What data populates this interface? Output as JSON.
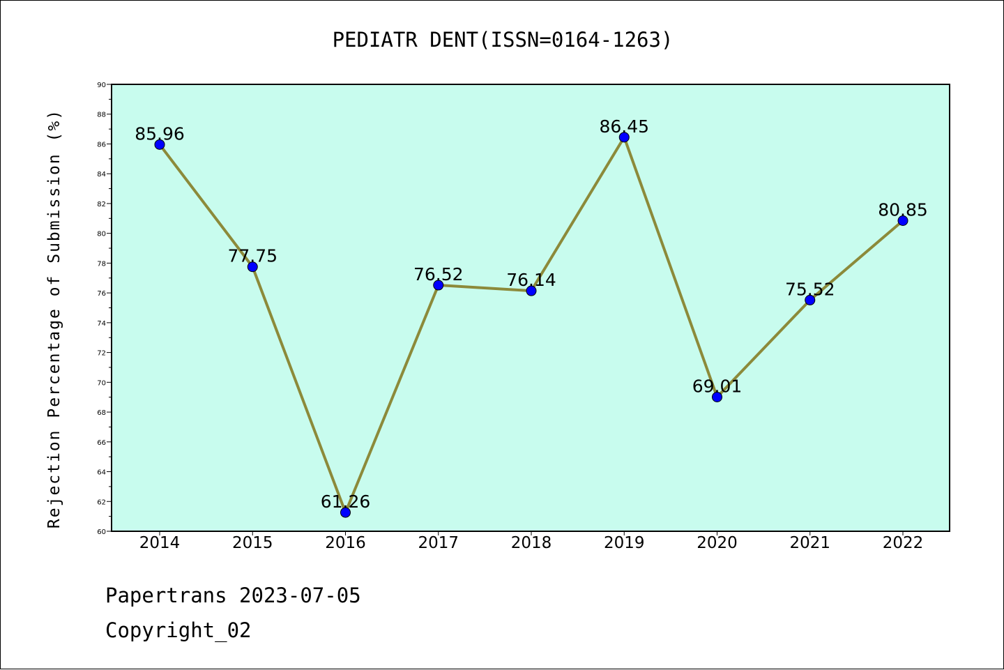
{
  "chart_data": {
    "type": "line",
    "title": "PEDIATR DENT(ISSN=0164-1263)",
    "xlabel": "",
    "ylabel": "Rejection Percentage of Submission (%)",
    "categories": [
      "2014",
      "2015",
      "2016",
      "2017",
      "2018",
      "2019",
      "2020",
      "2021",
      "2022"
    ],
    "values": [
      85.96,
      77.75,
      61.26,
      76.52,
      76.14,
      86.45,
      69.01,
      75.52,
      80.85
    ],
    "data_labels": [
      "85.96",
      "77.75",
      "61.26",
      "76.52",
      "76.14",
      "86.45",
      "69.01",
      "75.52",
      "80.85"
    ],
    "ylim": [
      60,
      90
    ],
    "yticks": [
      "60",
      "62",
      "64",
      "66",
      "68",
      "70",
      "72",
      "74",
      "76",
      "78",
      "80",
      "82",
      "84",
      "86",
      "88",
      "90"
    ],
    "grid": false,
    "legend": "none",
    "colors": {
      "plot_background": "#c8fcee",
      "line": "#8c8a3a",
      "marker": "#0000ff",
      "axes": "#000000"
    }
  },
  "footer": {
    "date_line": "Papertrans 2023-07-05",
    "copyright_line": "Copyright_02"
  }
}
